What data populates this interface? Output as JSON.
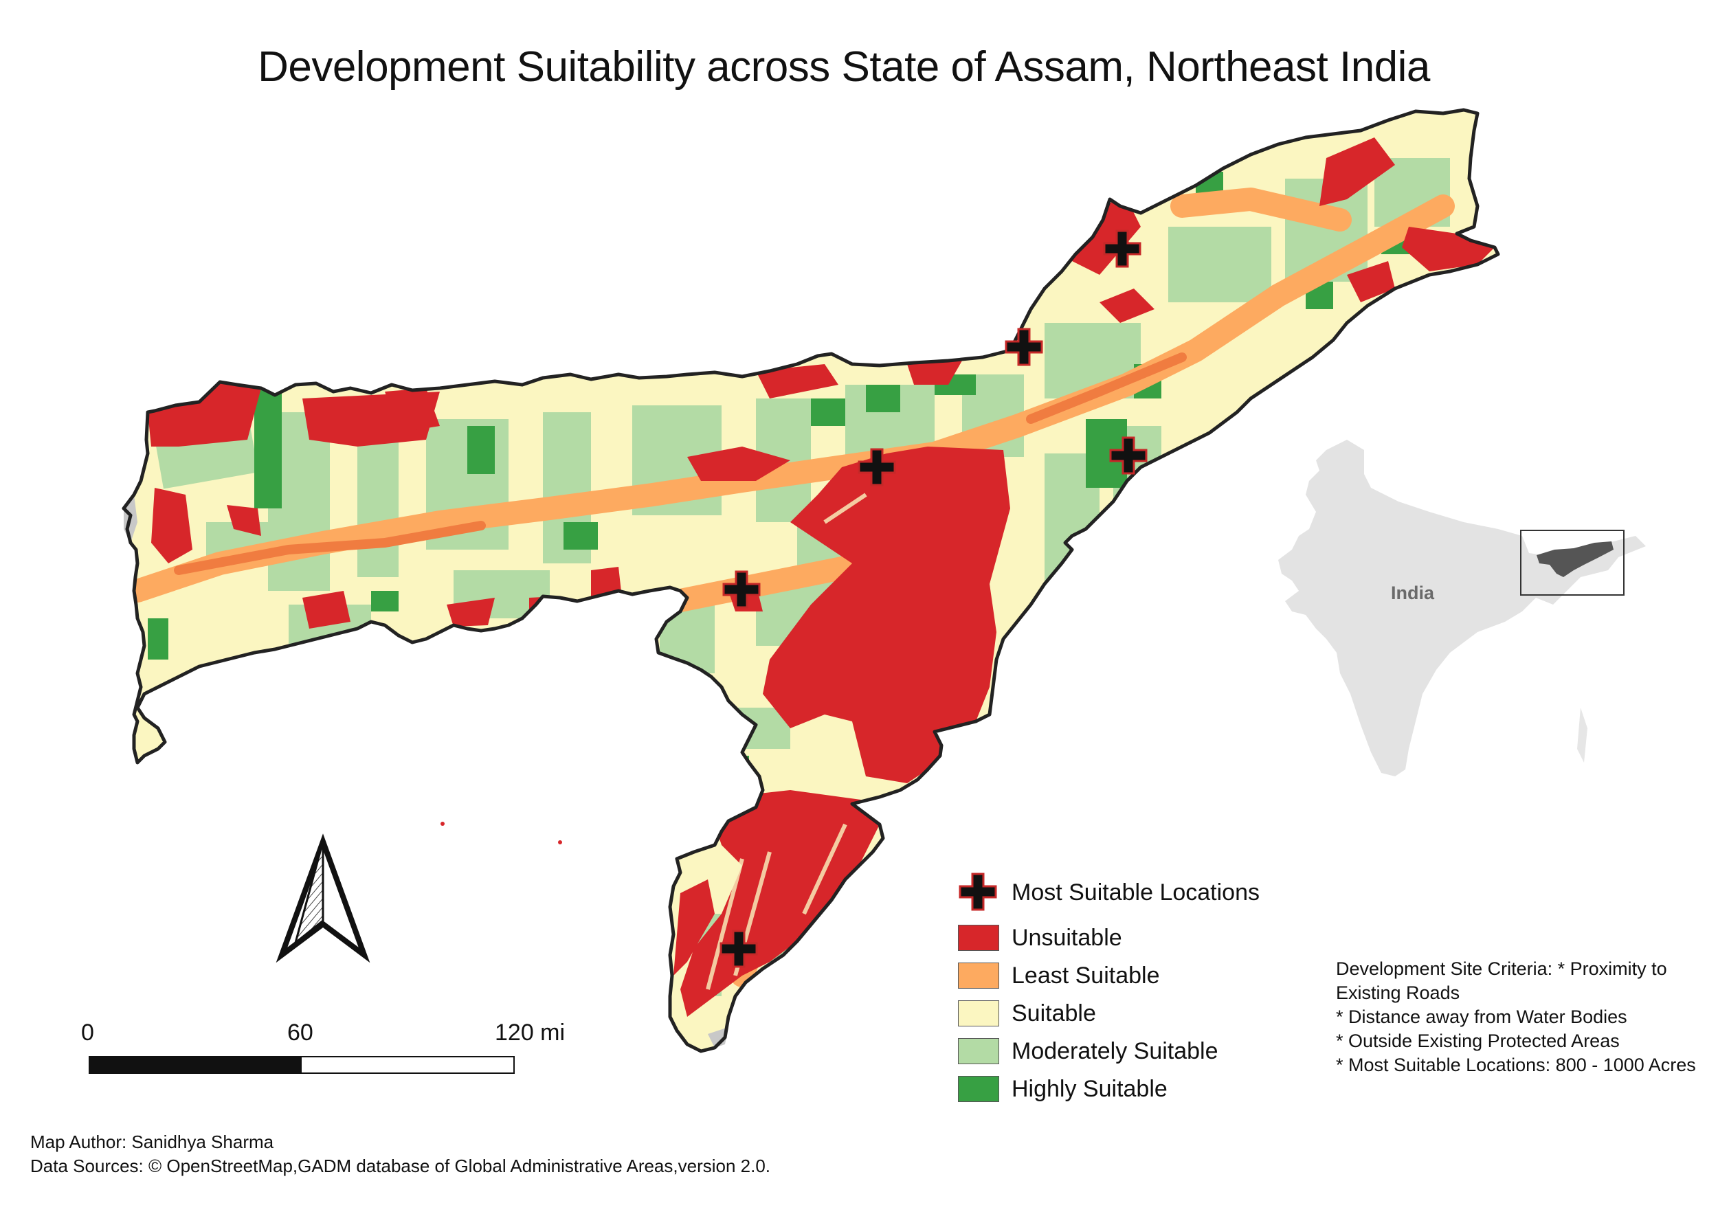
{
  "title": "Development Suitability across State of Assam, Northeast India",
  "legend": {
    "items": [
      {
        "label": "Most Suitable Locations",
        "symbol": "cross",
        "color": "#111111"
      },
      {
        "label": "Unsuitable",
        "color": "#d7262a"
      },
      {
        "label": "Least Suitable",
        "color": "#fdaa60"
      },
      {
        "label": "Suitable",
        "color": "#fbf6c1"
      },
      {
        "label": "Moderately Suitable",
        "color": "#b3dba5"
      },
      {
        "label": "Highly Suitable",
        "color": "#37a043"
      }
    ]
  },
  "criteria": [
    "Development Site Criteria: * Proximity to",
    "Existing Roads",
    "* Distance away from Water Bodies",
    "* Outside Existing Protected Areas",
    "* Most Suitable Locations: 800 - 1000 Acres"
  ],
  "scale_bar": {
    "labels": [
      "0",
      "60",
      "120 mi"
    ]
  },
  "inset_map": {
    "label": "India"
  },
  "credits": {
    "author": "Map Author: Sanidhya Sharma",
    "sources": "Data Sources: © OpenStreetMap,GADM database of Global Administrative Areas,version 2.0."
  },
  "north_arrow": {
    "icon": "north-arrow-icon"
  }
}
